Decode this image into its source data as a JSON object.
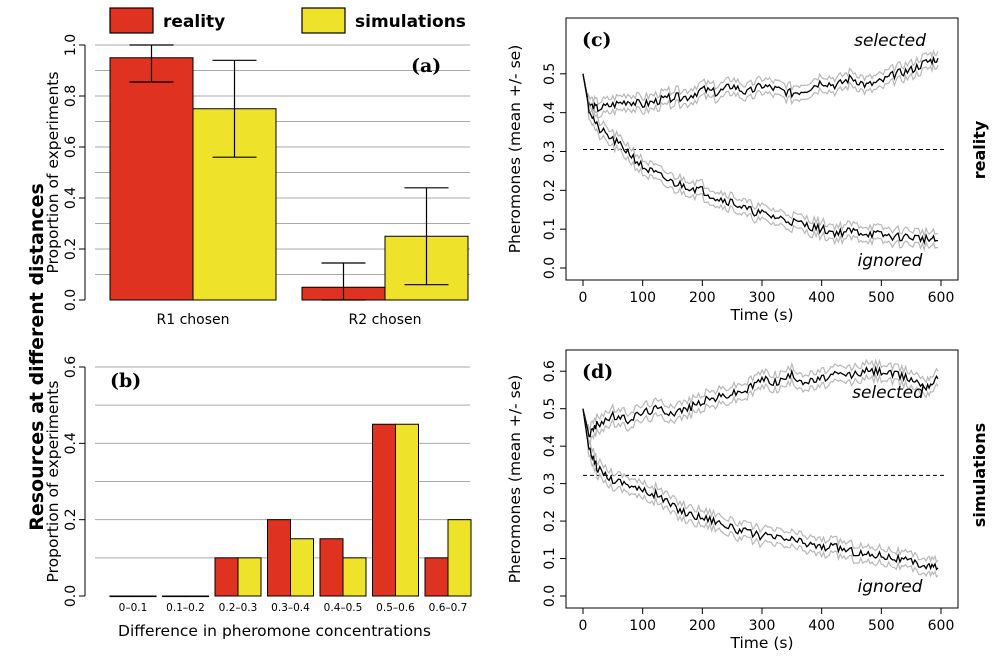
{
  "figure": {
    "row_label_left": "Resources at different distances",
    "row_label_right_top": "reality",
    "row_label_right_bottom": "simulations",
    "legend": [
      {
        "label": "reality",
        "color": "#e03220"
      },
      {
        "label": "simulations",
        "color": "#eee32a"
      }
    ]
  },
  "colors": {
    "reality": "#e03220",
    "simulations": "#eee32a",
    "grid": "#aaaaaa",
    "band": "#b8b8b8"
  },
  "chart_data": [
    {
      "type": "bar",
      "panel_label": "(a)",
      "categories": [
        "R1 chosen",
        "R2 chosen"
      ],
      "series": [
        {
          "name": "reality",
          "values": [
            0.95,
            0.05
          ],
          "error_low": [
            0.855,
            0.0
          ],
          "error_high": [
            1.0,
            0.145
          ]
        },
        {
          "name": "simulations",
          "values": [
            0.75,
            0.25
          ],
          "error_low": [
            0.56,
            0.06
          ],
          "error_high": [
            0.94,
            0.44
          ]
        }
      ],
      "ylabel": "Proportion of experiments",
      "ylim": [
        0,
        1.0
      ],
      "yticks": [
        "0.0",
        "0.2",
        "0.4",
        "0.6",
        "0.8",
        "1.0"
      ],
      "grid": "horizontal"
    },
    {
      "type": "bar",
      "panel_label": "(b)",
      "categories": [
        "0–0.1",
        "0.1–0.2",
        "0.2–0.3",
        "0.3–0.4",
        "0.4–0.5",
        "0.5–0.6",
        "0.6–0.7"
      ],
      "series": [
        {
          "name": "reality",
          "values": [
            0.0,
            0.0,
            0.1,
            0.2,
            0.15,
            0.45,
            0.1
          ]
        },
        {
          "name": "simulations",
          "values": [
            0.0,
            0.0,
            0.1,
            0.15,
            0.1,
            0.45,
            0.2
          ]
        }
      ],
      "xlabel": "Difference in pheromone concentrations",
      "ylabel": "Proportion of experiments",
      "ylim": [
        0,
        0.6
      ],
      "yticks": [
        "0.0",
        "0.2",
        "0.4",
        "0.6"
      ],
      "grid": "horizontal"
    },
    {
      "type": "line",
      "panel_label": "(c)",
      "xlabel": "Time (s)",
      "ylabel": "Pheromones (mean +/- se)",
      "xlim": [
        0,
        600
      ],
      "ylim": [
        0,
        0.6
      ],
      "xticks": [
        "0",
        "100",
        "200",
        "300",
        "400",
        "500",
        "600"
      ],
      "yticks": [
        "0.0",
        "0.1",
        "0.2",
        "0.3",
        "0.4",
        "0.5"
      ],
      "reference_line": 0.305,
      "annotations": [
        "selected",
        "ignored"
      ],
      "series": [
        {
          "x": [
            0,
            10,
            25,
            50,
            75,
            100,
            125,
            150,
            175,
            200,
            225,
            250,
            275,
            300,
            325,
            350,
            375,
            400,
            425,
            450,
            475,
            500,
            525,
            550,
            575,
            595
          ],
          "y": [
            0.5,
            0.42,
            0.41,
            0.42,
            0.43,
            0.42,
            0.43,
            0.44,
            0.44,
            0.46,
            0.45,
            0.47,
            0.45,
            0.47,
            0.46,
            0.45,
            0.46,
            0.48,
            0.47,
            0.49,
            0.47,
            0.48,
            0.5,
            0.51,
            0.53,
            0.54
          ]
        },
        {
          "x": [
            0,
            10,
            25,
            50,
            75,
            100,
            125,
            150,
            175,
            200,
            225,
            250,
            275,
            300,
            325,
            350,
            375,
            400,
            425,
            450,
            475,
            500,
            525,
            550,
            575,
            595
          ],
          "y": [
            0.5,
            0.41,
            0.36,
            0.33,
            0.3,
            0.26,
            0.24,
            0.22,
            0.21,
            0.2,
            0.18,
            0.17,
            0.15,
            0.14,
            0.13,
            0.12,
            0.11,
            0.1,
            0.09,
            0.095,
            0.09,
            0.085,
            0.08,
            0.08,
            0.075,
            0.07
          ]
        }
      ],
      "se": 0.018
    },
    {
      "type": "line",
      "panel_label": "(d)",
      "xlabel": "Time (s)",
      "ylabel": "Pheromones (mean +/- se)",
      "xlim": [
        0,
        600
      ],
      "ylim": [
        0,
        0.63
      ],
      "xticks": [
        "0",
        "100",
        "200",
        "300",
        "400",
        "500",
        "600"
      ],
      "yticks": [
        "0.0",
        "0.1",
        "0.2",
        "0.3",
        "0.4",
        "0.5",
        "0.6"
      ],
      "reference_line": 0.322,
      "annotations": [
        "selected",
        "ignored"
      ],
      "series": [
        {
          "x": [
            0,
            10,
            25,
            50,
            75,
            100,
            125,
            150,
            175,
            200,
            225,
            250,
            275,
            300,
            325,
            350,
            375,
            400,
            425,
            450,
            475,
            500,
            525,
            550,
            575,
            595
          ],
          "y": [
            0.5,
            0.43,
            0.46,
            0.48,
            0.47,
            0.49,
            0.5,
            0.49,
            0.5,
            0.52,
            0.53,
            0.54,
            0.55,
            0.58,
            0.57,
            0.59,
            0.57,
            0.58,
            0.59,
            0.59,
            0.6,
            0.6,
            0.59,
            0.58,
            0.56,
            0.58
          ]
        },
        {
          "x": [
            0,
            10,
            25,
            50,
            75,
            100,
            125,
            150,
            175,
            200,
            225,
            250,
            275,
            300,
            325,
            350,
            375,
            400,
            425,
            450,
            475,
            500,
            525,
            550,
            575,
            595
          ],
          "y": [
            0.5,
            0.39,
            0.34,
            0.31,
            0.3,
            0.28,
            0.27,
            0.24,
            0.22,
            0.21,
            0.2,
            0.18,
            0.17,
            0.16,
            0.155,
            0.15,
            0.14,
            0.13,
            0.13,
            0.12,
            0.11,
            0.11,
            0.1,
            0.09,
            0.08,
            0.075
          ]
        }
      ],
      "se": 0.02
    }
  ]
}
